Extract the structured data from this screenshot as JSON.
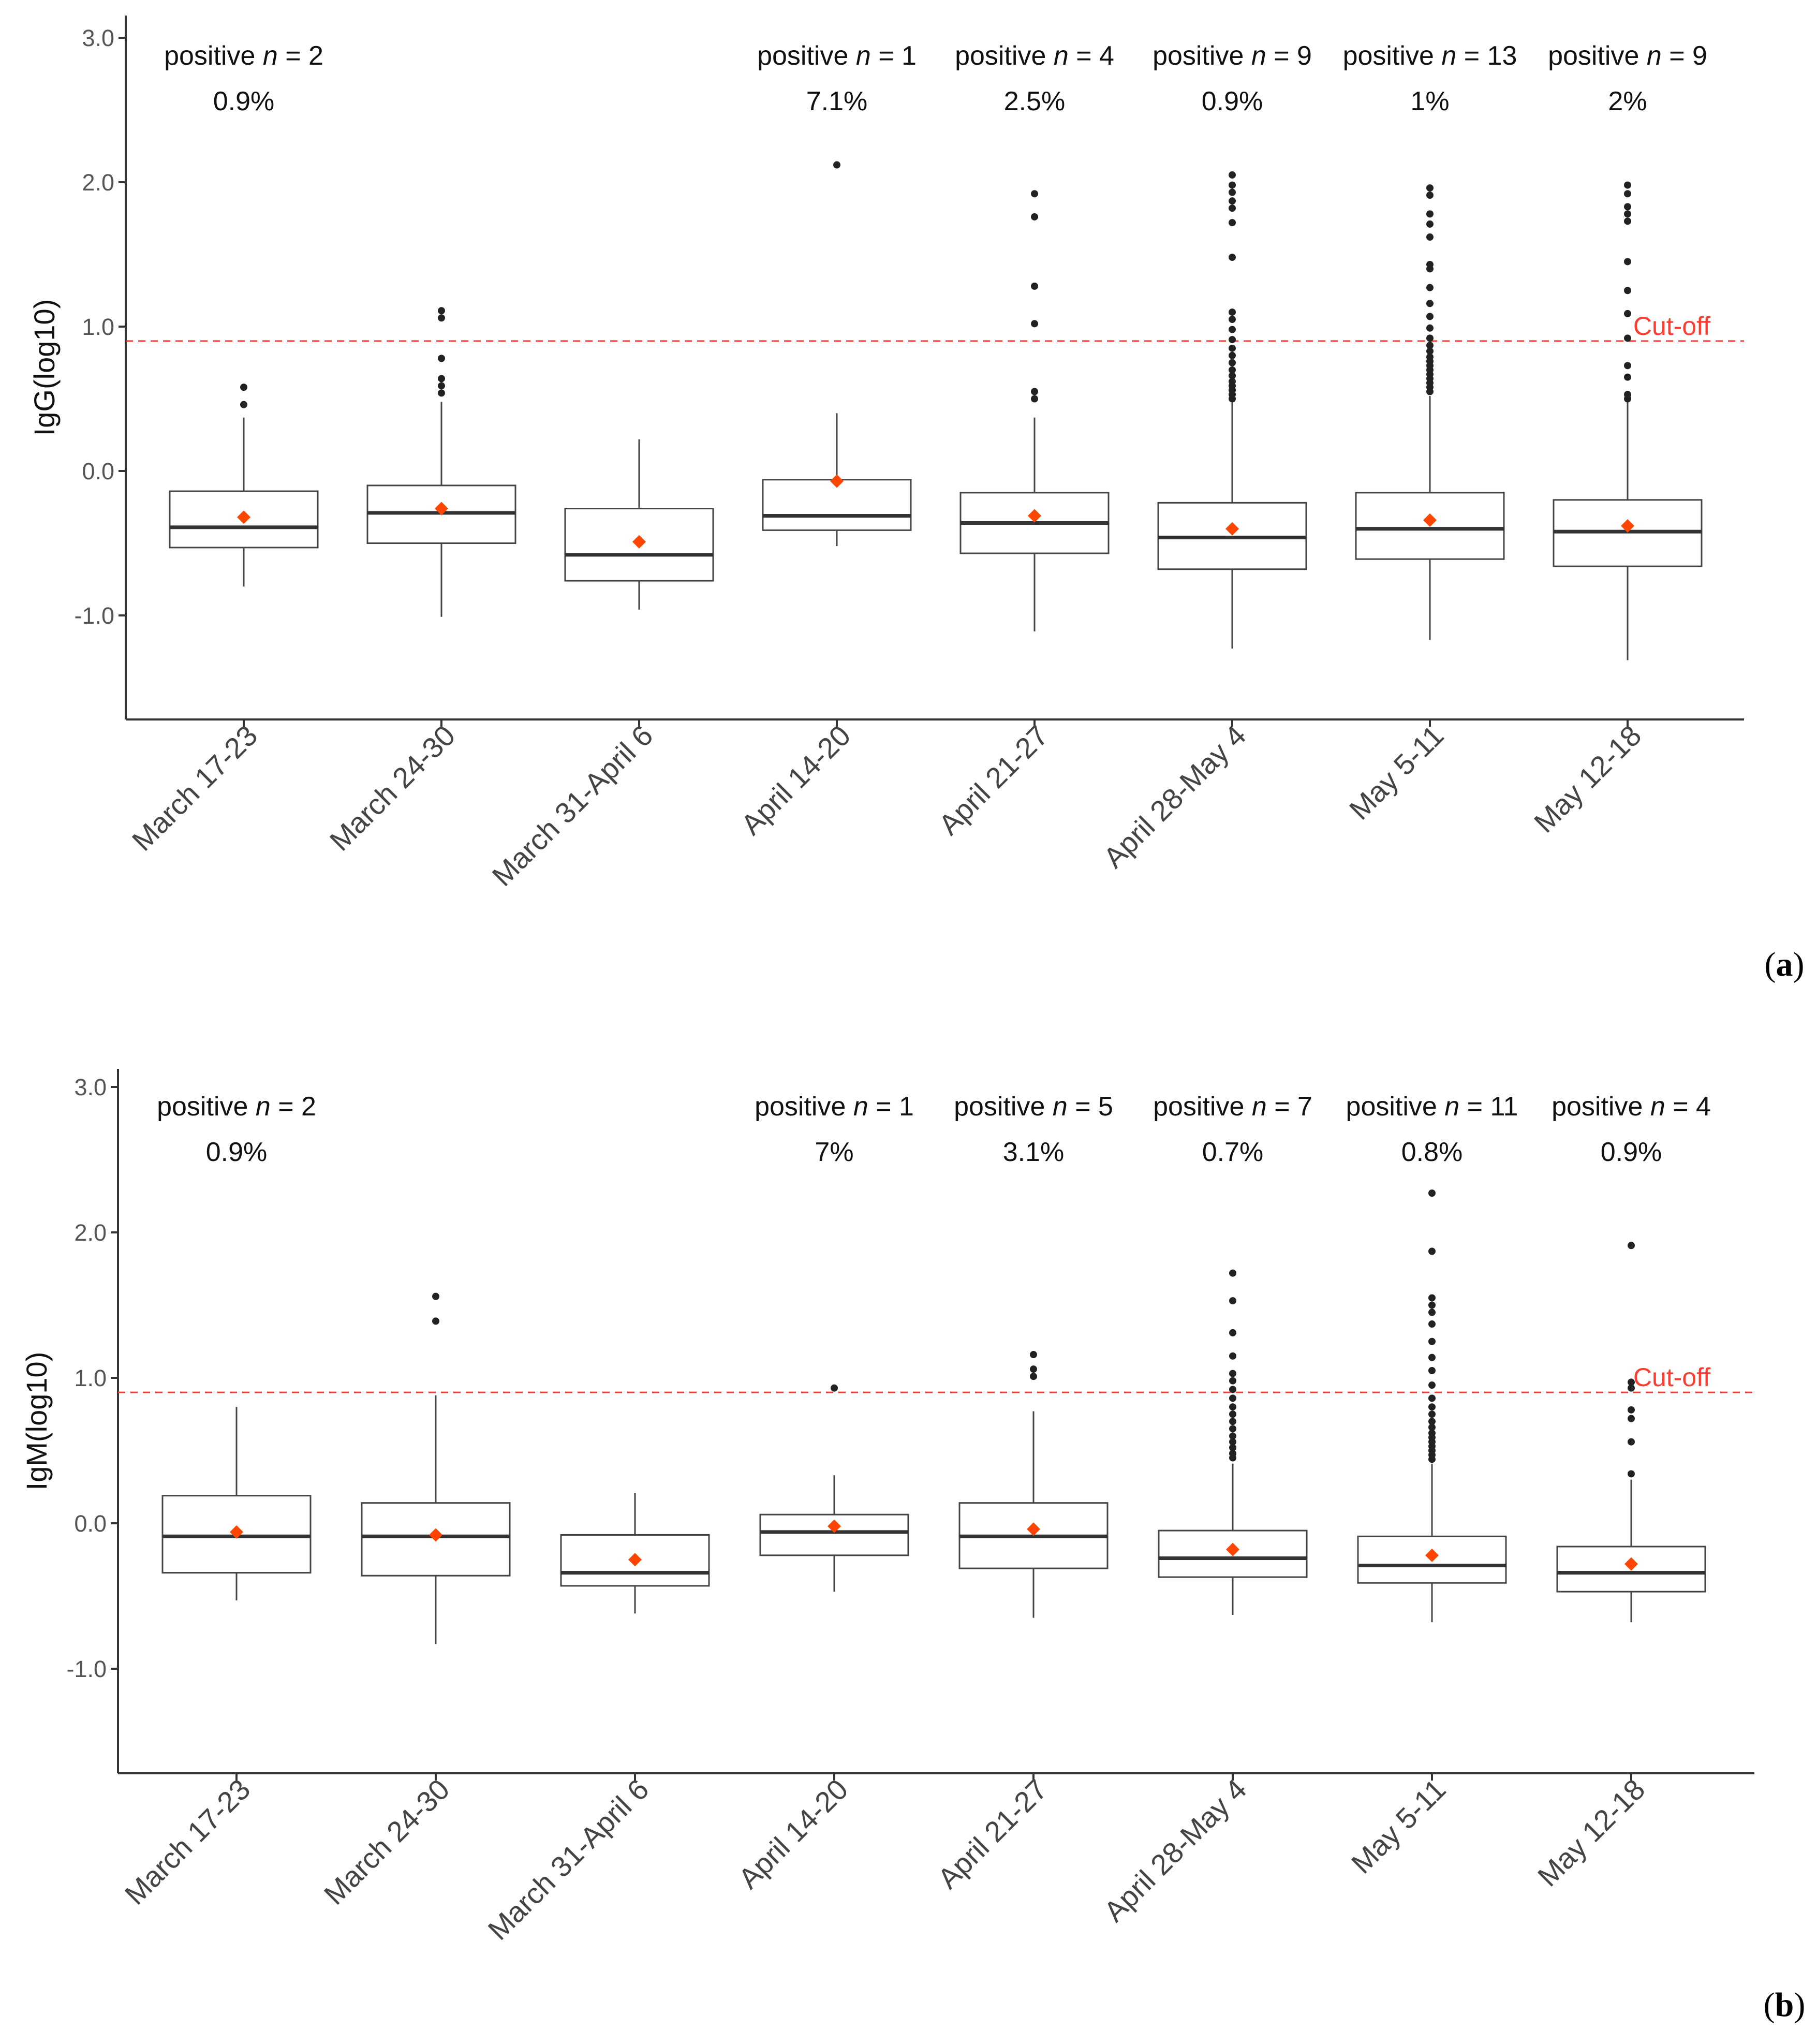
{
  "chart_data": [
    {
      "type": "box",
      "panel_label": "a",
      "ylabel": "IgG(log10)",
      "xlabel": "",
      "ylim": [
        -1.7,
        3.1
      ],
      "yticks": [
        -1.0,
        0.0,
        1.0,
        2.0,
        3.0
      ],
      "ytick_labels": [
        "-1.0",
        "0.0",
        "1.0",
        "2.0",
        "3.0"
      ],
      "cutoff": {
        "value": 0.9,
        "label": "Cut-off",
        "color": "#ff3b30"
      },
      "mean_color": "#ff4500",
      "categories": [
        "March 17-23",
        "March 24-30",
        "March 31-April 6",
        "April 14-20",
        "April 21-27",
        "April 28-May 4",
        "May 5-11",
        "May 12-18"
      ],
      "annotations": [
        {
          "text": "positive",
          "n": "2",
          "pct": "0.9%"
        },
        null,
        null,
        {
          "text": "positive",
          "n": "1",
          "pct": "7.1%"
        },
        {
          "text": "positive",
          "n": "4",
          "pct": "2.5%"
        },
        {
          "text": "positive",
          "n": "9",
          "pct": "0.9%"
        },
        {
          "text": "positive",
          "n": "13",
          "pct": "1%"
        },
        {
          "text": "positive",
          "n": "9",
          "pct": "2%"
        }
      ],
      "boxes": [
        {
          "q1": -0.53,
          "median": -0.39,
          "q3": -0.14,
          "lower": -0.8,
          "upper": 0.37,
          "mean": -0.32,
          "outliers": [
            0.46,
            0.58
          ]
        },
        {
          "q1": -0.5,
          "median": -0.29,
          "q3": -0.1,
          "lower": -1.01,
          "upper": 0.48,
          "mean": -0.26,
          "outliers": [
            0.54,
            0.59,
            0.64,
            0.78,
            1.06,
            1.11
          ]
        },
        {
          "q1": -0.76,
          "median": -0.58,
          "q3": -0.26,
          "lower": -0.96,
          "upper": 0.22,
          "mean": -0.49,
          "outliers": []
        },
        {
          "q1": -0.41,
          "median": -0.31,
          "q3": -0.06,
          "lower": -0.52,
          "upper": 0.4,
          "mean": -0.07,
          "outliers": [
            2.12
          ]
        },
        {
          "q1": -0.57,
          "median": -0.36,
          "q3": -0.15,
          "lower": -1.11,
          "upper": 0.37,
          "mean": -0.31,
          "outliers": [
            0.5,
            0.55,
            1.02,
            1.28,
            1.76,
            1.92
          ]
        },
        {
          "q1": -0.68,
          "median": -0.46,
          "q3": -0.22,
          "lower": -1.23,
          "upper": 0.48,
          "mean": -0.4,
          "outliers": [
            0.5,
            0.53,
            0.56,
            0.59,
            0.62,
            0.66,
            0.7,
            0.75,
            0.8,
            0.85,
            0.91,
            0.98,
            1.05,
            1.1,
            1.48,
            1.72,
            1.82,
            1.87,
            1.93,
            1.98,
            2.05
          ]
        },
        {
          "q1": -0.61,
          "median": -0.4,
          "q3": -0.15,
          "lower": -1.17,
          "upper": 0.52,
          "mean": -0.34,
          "outliers": [
            0.55,
            0.58,
            0.61,
            0.64,
            0.67,
            0.7,
            0.73,
            0.76,
            0.79,
            0.83,
            0.87,
            0.92,
            0.99,
            1.07,
            1.16,
            1.27,
            1.4,
            1.43,
            1.62,
            1.71,
            1.78,
            1.91,
            1.96
          ]
        },
        {
          "q1": -0.66,
          "median": -0.42,
          "q3": -0.2,
          "lower": -1.31,
          "upper": 0.48,
          "mean": -0.38,
          "outliers": [
            0.5,
            0.53,
            0.65,
            0.73,
            0.92,
            1.09,
            1.25,
            1.45,
            1.73,
            1.78,
            1.83,
            1.92,
            1.98
          ]
        }
      ]
    },
    {
      "type": "box",
      "panel_label": "b",
      "ylabel": "IgM(log10)",
      "xlabel": "",
      "ylim": [
        -1.7,
        3.1
      ],
      "yticks": [
        -1.0,
        0.0,
        1.0,
        2.0,
        3.0
      ],
      "ytick_labels": [
        "-1.0",
        "0.0",
        "1.0",
        "2.0",
        "3.0"
      ],
      "cutoff": {
        "value": 0.9,
        "label": "Cut-off",
        "color": "#ff3b30"
      },
      "mean_color": "#ff4500",
      "categories": [
        "March 17-23",
        "March 24-30",
        "March 31-April 6",
        "April 14-20",
        "April 21-27",
        "April 28-May 4",
        "May 5-11",
        "May 12-18"
      ],
      "annotations": [
        {
          "text": "positive",
          "n": "2",
          "pct": "0.9%"
        },
        null,
        null,
        {
          "text": "positive",
          "n": "1",
          "pct": "7%"
        },
        {
          "text": "positive",
          "n": "5",
          "pct": "3.1%"
        },
        {
          "text": "positive",
          "n": "7",
          "pct": "0.7%"
        },
        {
          "text": "positive",
          "n": "11",
          "pct": "0.8%"
        },
        {
          "text": "positive",
          "n": "4",
          "pct": "0.9%"
        }
      ],
      "boxes": [
        {
          "q1": -0.34,
          "median": -0.09,
          "q3": 0.19,
          "lower": -0.53,
          "upper": 0.8,
          "mean": -0.06,
          "outliers": []
        },
        {
          "q1": -0.36,
          "median": -0.09,
          "q3": 0.14,
          "lower": -0.83,
          "upper": 0.88,
          "mean": -0.08,
          "outliers": [
            1.39,
            1.56
          ]
        },
        {
          "q1": -0.43,
          "median": -0.34,
          "q3": -0.08,
          "lower": -0.62,
          "upper": 0.21,
          "mean": -0.25,
          "outliers": []
        },
        {
          "q1": -0.22,
          "median": -0.06,
          "q3": 0.06,
          "lower": -0.47,
          "upper": 0.33,
          "mean": -0.02,
          "outliers": [
            0.93
          ]
        },
        {
          "q1": -0.31,
          "median": -0.09,
          "q3": 0.14,
          "lower": -0.65,
          "upper": 0.77,
          "mean": -0.04,
          "outliers": [
            1.01,
            1.06,
            1.16
          ]
        },
        {
          "q1": -0.37,
          "median": -0.24,
          "q3": -0.05,
          "lower": -0.63,
          "upper": 0.41,
          "mean": -0.18,
          "outliers": [
            0.45,
            0.48,
            0.52,
            0.56,
            0.6,
            0.65,
            0.7,
            0.75,
            0.8,
            0.86,
            0.92,
            0.98,
            1.03,
            1.15,
            1.31,
            1.53,
            1.72
          ]
        },
        {
          "q1": -0.41,
          "median": -0.29,
          "q3": -0.09,
          "lower": -0.68,
          "upper": 0.41,
          "mean": -0.22,
          "outliers": [
            0.44,
            0.47,
            0.5,
            0.53,
            0.56,
            0.59,
            0.62,
            0.66,
            0.7,
            0.75,
            0.8,
            0.86,
            0.95,
            1.05,
            1.14,
            1.25,
            1.37,
            1.45,
            1.5,
            1.55,
            1.87,
            2.27
          ]
        },
        {
          "q1": -0.47,
          "median": -0.34,
          "q3": -0.16,
          "lower": -0.68,
          "upper": 0.3,
          "mean": -0.28,
          "outliers": [
            0.34,
            0.56,
            0.72,
            0.78,
            0.93,
            0.97,
            1.91
          ]
        }
      ]
    }
  ]
}
